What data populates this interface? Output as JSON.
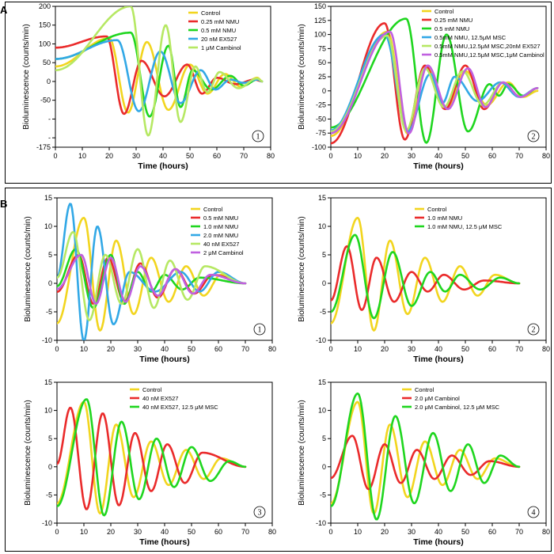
{
  "figure": {
    "panel_labels": [
      "A",
      "B"
    ]
  },
  "chart_data": [
    {
      "id": "A1",
      "type": "line",
      "badge": "1",
      "xlabel": "Time (hours)",
      "ylabel": "Bioluminescence  (counts/min)",
      "xlim": [
        0,
        80
      ],
      "ylim": [
        -175,
        200
      ],
      "xticks": [
        0,
        10,
        20,
        30,
        40,
        50,
        60,
        70,
        80
      ],
      "yticks": [
        -175,
        -150,
        -100,
        -50,
        0,
        50,
        100,
        150,
        200
      ],
      "ytick_labels": [
        "-175",
        "-",
        "-",
        "-50",
        "0",
        "50",
        "100",
        "150",
        "200"
      ],
      "series": [
        {
          "name": "Control",
          "color": "#f2d51f",
          "start": 0,
          "end": 77,
          "base": -45,
          "amps": [
            40,
            115,
            105,
            45,
            20,
            10
          ],
          "peaks": [
            3,
            20,
            34,
            50,
            63,
            75
          ],
          "troughs": [
            7,
            32,
            40,
            57,
            70
          ]
        },
        {
          "name": "0.25 mM NMU",
          "color": "#ea2b2b",
          "start": 0,
          "end": 77,
          "base": -40,
          "amps": [
            90,
            120,
            55,
            45,
            10,
            5
          ],
          "peaks": [
            2,
            19,
            32,
            49,
            60,
            74
          ],
          "troughs": [
            7,
            32,
            40,
            56,
            69
          ]
        },
        {
          "name": "0.5 mM NMU",
          "color": "#1fd61f",
          "start": 0,
          "end": 77,
          "base": -50,
          "amps": [
            60,
            130,
            95,
            30,
            15,
            5
          ],
          "peaks": [
            2,
            28,
            42,
            51,
            65,
            75
          ],
          "troughs": [
            6,
            42,
            46,
            57,
            70
          ]
        },
        {
          "name": "20 nM EX527",
          "color": "#32a8e6",
          "start": 0,
          "end": 77,
          "base": -40,
          "amps": [
            60,
            110,
            80,
            30,
            5,
            5
          ],
          "peaks": [
            1,
            23,
            39,
            54,
            65,
            75
          ],
          "troughs": [
            8,
            39,
            45,
            58,
            70
          ]
        },
        {
          "name": "1 μM Cambinol",
          "color": "#b6e863",
          "start": 0,
          "end": 77,
          "base": -45,
          "amps": [
            30,
            200,
            150,
            40,
            25,
            8
          ],
          "peaks": [
            1,
            28,
            41,
            52,
            61,
            75
          ],
          "troughs": [
            7,
            41,
            45,
            56,
            70
          ]
        }
      ]
    },
    {
      "id": "A2",
      "type": "line",
      "badge": "2",
      "xlabel": "Time (hours)",
      "ylabel": "Bioluminescence  (counts/min)",
      "xlim": [
        0,
        80
      ],
      "ylim": [
        -100,
        150
      ],
      "xticks": [
        0,
        10,
        20,
        30,
        40,
        50,
        60,
        70,
        80
      ],
      "yticks": [
        -100,
        -75,
        -50,
        -25,
        0,
        25,
        50,
        75,
        100,
        125,
        150
      ],
      "ytick_labels": [
        "-100",
        "-75",
        "-50",
        "-25",
        "0",
        "25",
        "50",
        "75",
        "100",
        "125",
        "150"
      ],
      "series": [
        {
          "name": "Control",
          "color": "#f2d51f",
          "start": 0,
          "end": 77,
          "base": -10,
          "amps": [
            -80,
            105,
            45,
            35,
            15,
            0
          ],
          "peaks": [
            0,
            21,
            36,
            50,
            66,
            77
          ],
          "troughs": [
            7,
            36,
            42,
            58,
            72
          ]
        },
        {
          "name": "0.25 mM NMU",
          "color": "#ea2b2b",
          "start": 0,
          "end": 77,
          "base": -15,
          "amps": [
            -93,
            120,
            45,
            45,
            15,
            5
          ],
          "peaks": [
            0,
            20,
            35,
            50,
            64,
            77
          ],
          "troughs": [
            6,
            35,
            41,
            57,
            71
          ]
        },
        {
          "name": "0.5 mM NMU",
          "color": "#1fd61f",
          "start": 0,
          "end": 77,
          "base": -30,
          "amps": [
            -65,
            128,
            100,
            12,
            12,
            5
          ],
          "peaks": [
            0,
            28,
            43,
            59,
            66,
            77
          ],
          "troughs": [
            6,
            43,
            48,
            63,
            72
          ]
        },
        {
          "name": "0.5mM NMU, 12.5μM MSC",
          "color": "#32a8e6",
          "start": 0,
          "end": 77,
          "base": -20,
          "amps": [
            -70,
            100,
            30,
            25,
            15,
            5
          ],
          "peaks": [
            0,
            20,
            37,
            46,
            63,
            77
          ],
          "troughs": [
            6,
            37,
            41,
            54,
            71
          ]
        },
        {
          "name": "0.5mM NMU,12.5μM MSC,20nM EX527",
          "color": "#b6e863",
          "start": 0,
          "end": 77,
          "base": -25,
          "amps": [
            -72,
            98,
            40,
            35,
            15,
            5
          ],
          "peaks": [
            0,
            21,
            35,
            49,
            64,
            77
          ],
          "troughs": [
            7,
            35,
            41,
            57,
            71
          ]
        },
        {
          "name": "0.5mM NMU,12.5μM MSC,1μM Cambinol",
          "color": "#c060e0",
          "start": 0,
          "end": 77,
          "base": -20,
          "amps": [
            -75,
            105,
            45,
            40,
            15,
            5
          ],
          "peaks": [
            0,
            22,
            36,
            51,
            64,
            77
          ],
          "troughs": [
            7,
            36,
            42,
            58,
            71
          ]
        }
      ]
    },
    {
      "id": "B1",
      "type": "line",
      "badge": "1",
      "xlabel": "Time (hours)",
      "ylabel": "Bioluminescence  (counts/min)",
      "xlim": [
        0,
        80
      ],
      "ylim": [
        -10,
        15
      ],
      "xticks": [
        0,
        10,
        20,
        30,
        40,
        50,
        60,
        70,
        80
      ],
      "yticks": [
        -10,
        -5,
        0,
        5,
        10,
        15
      ],
      "ytick_labels": [
        "-10",
        "-5",
        "0",
        "5",
        "10",
        "15"
      ],
      "series": [
        {
          "name": "Control",
          "color": "#f2d51f",
          "start": 0,
          "end": 70,
          "base": 0,
          "amps": [
            -7,
            11.5,
            7.5,
            4.5,
            3,
            1.5
          ],
          "peaks": [
            0,
            10,
            22,
            35,
            48,
            61
          ],
          "troughs": [
            0,
            22,
            22.5,
            48,
            48.5
          ]
        },
        {
          "name": "0.5 mM NMU",
          "color": "#ea2b2b",
          "start": 0,
          "end": 70,
          "base": 0,
          "amps": [
            -1.5,
            5,
            4.5,
            3.5,
            2.5,
            1.5
          ],
          "peaks": [
            0,
            8,
            19,
            31,
            44,
            58
          ],
          "troughs": [
            0,
            19,
            19.5,
            44,
            44.5
          ]
        },
        {
          "name": "1.0 mM NMU",
          "color": "#1fd61f",
          "start": 0,
          "end": 70,
          "base": 0,
          "amps": [
            -0.5,
            6,
            5,
            2,
            1.5,
            1
          ],
          "peaks": [
            0,
            7,
            20,
            30,
            40,
            53
          ],
          "troughs": [
            0,
            20,
            20.5,
            40,
            40.5
          ]
        },
        {
          "name": "2.0 mM NMU",
          "color": "#32a8e6",
          "start": 0,
          "end": 70,
          "base": 0,
          "amps": [
            1,
            14,
            10,
            2,
            2,
            2
          ],
          "peaks": [
            0,
            5,
            15,
            27,
            46,
            60
          ],
          "troughs": [
            0,
            15,
            15.5,
            46,
            46.5
          ]
        },
        {
          "name": "40 nM EX527",
          "color": "#b6e863",
          "start": 0,
          "end": 70,
          "base": 0,
          "amps": [
            1,
            9,
            5,
            6,
            4,
            3
          ],
          "peaks": [
            0,
            6,
            18,
            30,
            42,
            55
          ],
          "troughs": [
            0,
            18,
            18.5,
            42,
            42.5
          ]
        },
        {
          "name": "2 μM Cambinol",
          "color": "#c060e0",
          "start": 0,
          "end": 70,
          "base": 0,
          "amps": [
            -1,
            5,
            4.5,
            3,
            2.5,
            1.5
          ],
          "peaks": [
            0,
            9,
            20,
            31,
            44,
            57
          ],
          "troughs": [
            0,
            20,
            20.5,
            44,
            44.5
          ]
        }
      ]
    },
    {
      "id": "B2",
      "type": "line",
      "badge": "2",
      "xlabel": "Time (hours)",
      "ylabel": "Bioluminescence  (counts/min)",
      "xlim": [
        0,
        80
      ],
      "ylim": [
        -10,
        15
      ],
      "xticks": [
        0,
        10,
        20,
        30,
        40,
        50,
        60,
        70,
        80
      ],
      "yticks": [
        -10,
        -5,
        0,
        5,
        10,
        15
      ],
      "ytick_labels": [
        "-10",
        "-5",
        "0",
        "5",
        "10",
        "15"
      ],
      "series": [
        {
          "name": "Control",
          "color": "#f2d51f",
          "start": 0,
          "end": 70,
          "base": 0,
          "amps": [
            -7,
            11.5,
            7.5,
            4.5,
            3,
            1.5
          ],
          "peaks": [
            0,
            10,
            22,
            35,
            48,
            61
          ],
          "troughs": [
            0,
            22,
            22.5,
            48,
            48.5
          ]
        },
        {
          "name": "1.0 mM NMU",
          "color": "#ea2b2b",
          "start": 0,
          "end": 70,
          "base": 0,
          "amps": [
            -3,
            6.5,
            4.5,
            2,
            1.5,
            0.5
          ],
          "peaks": [
            0,
            6,
            17,
            30,
            42,
            57
          ],
          "troughs": [
            0,
            17,
            17.5,
            42,
            42.5
          ]
        },
        {
          "name": "1.0 mM NMU, 12.5 μM MSC",
          "color": "#1fd61f",
          "start": 0,
          "end": 70,
          "base": 0,
          "amps": [
            -5,
            8.5,
            5.5,
            2,
            1.5,
            1
          ],
          "peaks": [
            0,
            9,
            23,
            37,
            48,
            63
          ],
          "troughs": [
            0,
            23,
            23.5,
            48,
            48.5
          ]
        }
      ]
    },
    {
      "id": "B3",
      "type": "line",
      "badge": "3",
      "xlabel": "Time (hours)",
      "ylabel": "Bioluminescence  (counts/min)",
      "xlim": [
        0,
        80
      ],
      "ylim": [
        -10,
        15
      ],
      "xticks": [
        0,
        10,
        20,
        30,
        40,
        50,
        60,
        70,
        80
      ],
      "yticks": [
        -10,
        -5,
        0,
        5,
        10,
        15
      ],
      "ytick_labels": [
        "-10",
        "-5",
        "0",
        "5",
        "10",
        "15"
      ],
      "series": [
        {
          "name": "Control",
          "color": "#f2d51f",
          "start": 0,
          "end": 70,
          "base": 0,
          "amps": [
            -6.5,
            11.5,
            7.5,
            4.5,
            3,
            1.5
          ],
          "peaks": [
            0,
            10,
            22,
            35,
            48,
            61
          ],
          "troughs": [
            0,
            22,
            22.5,
            48,
            48.5
          ]
        },
        {
          "name": "40 nM EX527",
          "color": "#ea2b2b",
          "start": 0,
          "end": 70,
          "base": 0,
          "amps": [
            0.5,
            10.5,
            9.5,
            6,
            4,
            2.5
          ],
          "peaks": [
            0,
            5,
            17,
            29,
            41,
            54
          ],
          "troughs": [
            0,
            17,
            17.5,
            41,
            41.5
          ]
        },
        {
          "name": "40 nM EX527, 12.5 μM MSC",
          "color": "#1fd61f",
          "start": 0,
          "end": 70,
          "base": 0,
          "amps": [
            -7,
            12,
            8,
            5,
            3.5,
            1
          ],
          "peaks": [
            0,
            11,
            24,
            37,
            50,
            64
          ],
          "troughs": [
            0,
            24,
            24.5,
            50,
            50.5
          ]
        }
      ]
    },
    {
      "id": "B4",
      "type": "line",
      "badge": "4",
      "xlabel": "Time (hours)",
      "ylabel": "Bioluminescence  (counts/min)",
      "xlim": [
        0,
        80
      ],
      "ylim": [
        -10,
        15
      ],
      "xticks": [
        0,
        10,
        20,
        30,
        40,
        50,
        60,
        70,
        80
      ],
      "yticks": [
        -10,
        -5,
        0,
        5,
        10,
        15
      ],
      "ytick_labels": [
        "-10",
        "-5",
        "0",
        "5",
        "10",
        "15"
      ],
      "series": [
        {
          "name": "Control",
          "color": "#f2d51f",
          "start": 0,
          "end": 70,
          "base": 0,
          "amps": [
            -6.5,
            11.5,
            7.5,
            4.5,
            3,
            1.5
          ],
          "peaks": [
            0,
            10,
            22,
            35,
            48,
            61
          ],
          "troughs": [
            0,
            22,
            22.5,
            48,
            48.5
          ]
        },
        {
          "name": "2.0 μM Cambinol",
          "color": "#ea2b2b",
          "start": 0,
          "end": 70,
          "base": 0,
          "amps": [
            -2,
            5.5,
            4,
            3,
            2,
            1
          ],
          "peaks": [
            0,
            8,
            20,
            32,
            45,
            59
          ],
          "troughs": [
            0,
            20,
            20.5,
            45,
            45.5
          ]
        },
        {
          "name": "2.0 μM Cambinol, 12.5 μM MSC",
          "color": "#1fd61f",
          "start": 0,
          "end": 70,
          "base": 0,
          "amps": [
            -7,
            13,
            9,
            6,
            4,
            2
          ],
          "peaks": [
            0,
            10,
            24,
            38,
            51,
            63
          ],
          "troughs": [
            0,
            24,
            24.5,
            51,
            51.5
          ]
        }
      ]
    }
  ]
}
